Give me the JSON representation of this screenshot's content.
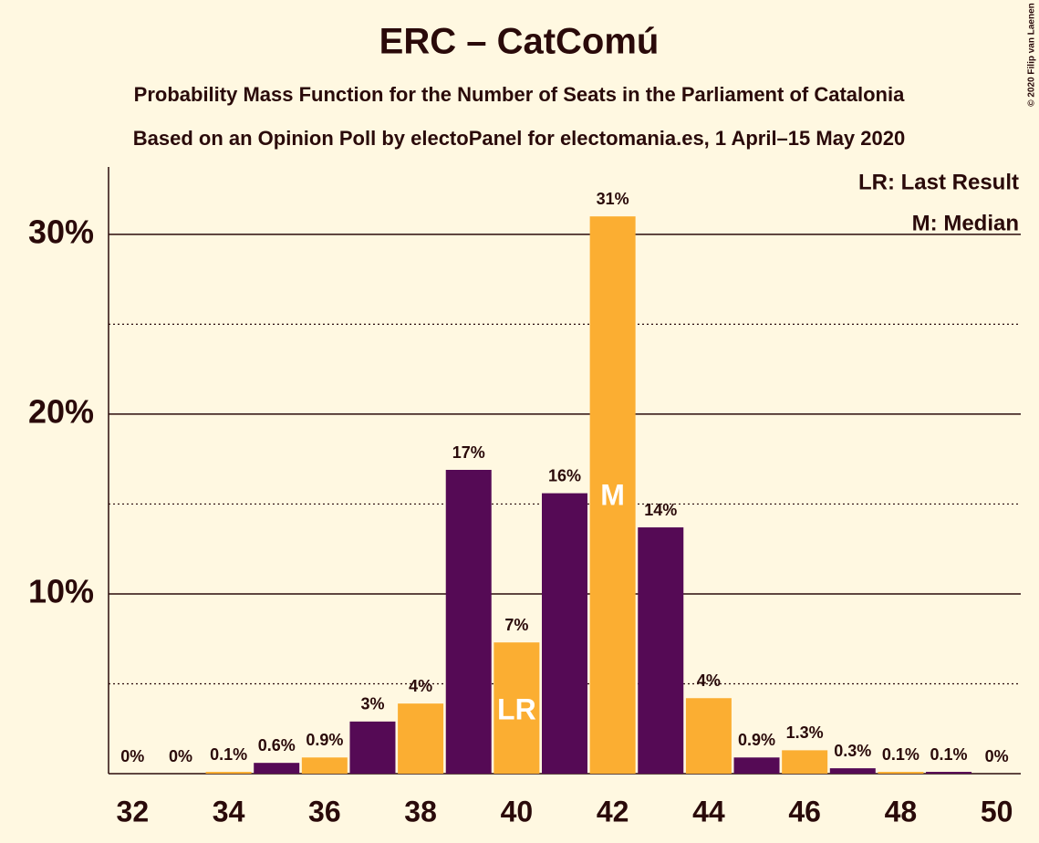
{
  "chart_data": {
    "type": "bar",
    "title": "ERC – CatComú",
    "subtitle": "Probability Mass Function for the Number of Seats in the Parliament of Catalonia",
    "subtitle2": "Based on an Opinion Poll by electoPanel for electomania.es, 1 April–15 May 2020",
    "copyright": "© 2020 Filip van Laenen",
    "x": [
      32,
      33,
      34,
      35,
      36,
      37,
      38,
      39,
      40,
      41,
      42,
      43,
      44,
      45,
      46,
      47,
      48,
      49,
      50
    ],
    "values": [
      0,
      0,
      0.1,
      0.6,
      0.9,
      2.9,
      3.9,
      16.9,
      7.3,
      15.6,
      31,
      13.7,
      4.2,
      0.9,
      1.3,
      0.3,
      0.1,
      0.1,
      0
    ],
    "value_labels": [
      "0%",
      "0%",
      "0.1%",
      "0.6%",
      "0.9%",
      "3%",
      "4%",
      "17%",
      "7%",
      "16%",
      "31%",
      "14%",
      "4%",
      "0.9%",
      "1.3%",
      "0.3%",
      "0.1%",
      "0.1%",
      "0%"
    ],
    "colors": [
      "#fbae32",
      "#550a55"
    ],
    "xlim": [
      31.5,
      50.5
    ],
    "xticks": [
      32,
      34,
      36,
      38,
      40,
      42,
      44,
      46,
      48,
      50
    ],
    "ylim": [
      0,
      33.75
    ],
    "yticks": [
      {
        "value": 10,
        "label": "10%"
      },
      {
        "value": 20,
        "label": "20%"
      },
      {
        "value": 30,
        "label": "30%"
      }
    ],
    "minor_yticks": [
      5,
      15,
      25
    ],
    "annotations": [
      {
        "text": "LR",
        "x": 40
      },
      {
        "text": "M",
        "x": 42
      }
    ],
    "legend": [
      "LR: Last Result",
      "M: Median"
    ]
  }
}
